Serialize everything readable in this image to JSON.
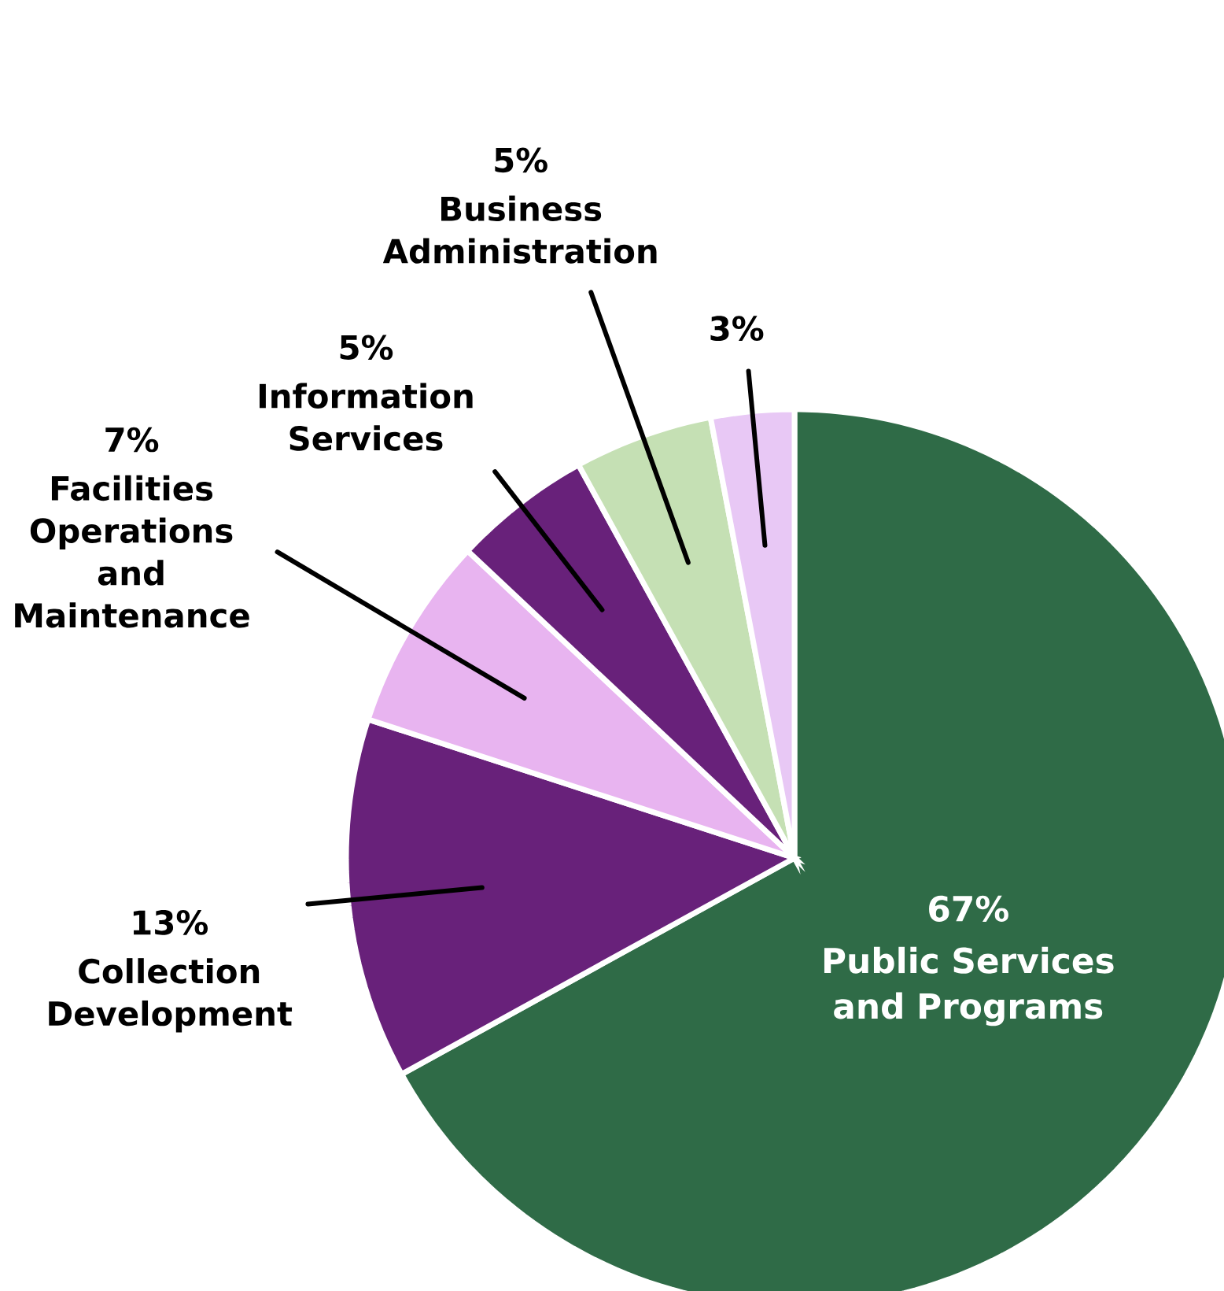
{
  "chart_data": {
    "type": "pie",
    "categories": [
      "Public Services and Programs",
      "Collection Development",
      "Facilities Operations and Maintenance",
      "Information Services",
      "Business Administration",
      null
    ],
    "values": [
      67,
      13,
      7,
      5,
      5,
      3
    ],
    "value_labels": [
      "67%",
      "13%",
      "7%",
      "5%",
      "5%",
      "3%"
    ],
    "colors": [
      "#2f6b47",
      "#68217a",
      "#e8b4f0",
      "#68217a",
      "#c5e0b4",
      "#e8c8f5"
    ]
  }
}
